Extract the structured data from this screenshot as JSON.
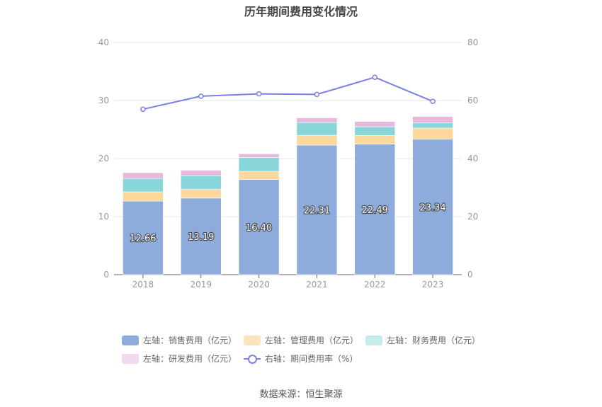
{
  "title": "历年期间费用变化情况",
  "source": "数据来源：恒生聚源",
  "colors": {
    "sales": "#8eacdb",
    "mgmt": "#fdd89c",
    "finance": "#88d6da",
    "rnd": "#e7b7dc",
    "ratio": "#7b7fe8",
    "axis_text": "#999999",
    "grid": "#e6e6e6"
  },
  "legend": [
    {
      "label": "左轴：销售费用（亿元）",
      "color": "#8eacdb",
      "kind": "box"
    },
    {
      "label": "左轴：管理费用（亿元）",
      "color": "#fde3bb",
      "kind": "box"
    },
    {
      "label": "左轴：财务费用（亿元）",
      "color": "#c3ecec",
      "kind": "box"
    },
    {
      "label": "左轴：研发费用（亿元）",
      "color": "#f2d9ed",
      "kind": "box"
    },
    {
      "label": "右轴：期间费用率（%）",
      "color": "#7b7fe8",
      "kind": "line"
    }
  ],
  "chart_data": {
    "type": "bar",
    "stacked": true,
    "categories": [
      "2018",
      "2019",
      "2020",
      "2021",
      "2022",
      "2023"
    ],
    "series": [
      {
        "name": "左轴：销售费用（亿元）",
        "axis": "left",
        "values": [
          12.66,
          13.19,
          16.4,
          22.31,
          22.49,
          23.34
        ],
        "labels": [
          "12.66",
          "13.19",
          "16.40",
          "22.31",
          "22.49",
          "23.34"
        ]
      },
      {
        "name": "左轴：管理费用（亿元）",
        "axis": "left",
        "values": [
          1.6,
          1.5,
          1.4,
          1.7,
          1.5,
          1.9
        ]
      },
      {
        "name": "左轴：财务费用（亿元）",
        "axis": "left",
        "values": [
          2.3,
          2.4,
          2.4,
          2.2,
          1.5,
          0.9
        ]
      },
      {
        "name": "左轴：研发费用（亿元）",
        "axis": "left",
        "values": [
          1.0,
          0.9,
          0.6,
          0.8,
          0.9,
          1.1
        ]
      },
      {
        "name": "右轴：期间费用率（%）",
        "axis": "right",
        "type": "line",
        "values": [
          57.0,
          61.5,
          62.3,
          62.1,
          68.0,
          59.7
        ]
      }
    ],
    "left_axis": {
      "min": 0,
      "max": 40,
      "ticks": [
        "0",
        "10",
        "20",
        "30",
        "40"
      ]
    },
    "right_axis": {
      "min": 0,
      "max": 80,
      "ticks": [
        "0",
        "20",
        "40",
        "60",
        "80"
      ]
    },
    "grid": true,
    "legend_position": "bottom"
  }
}
